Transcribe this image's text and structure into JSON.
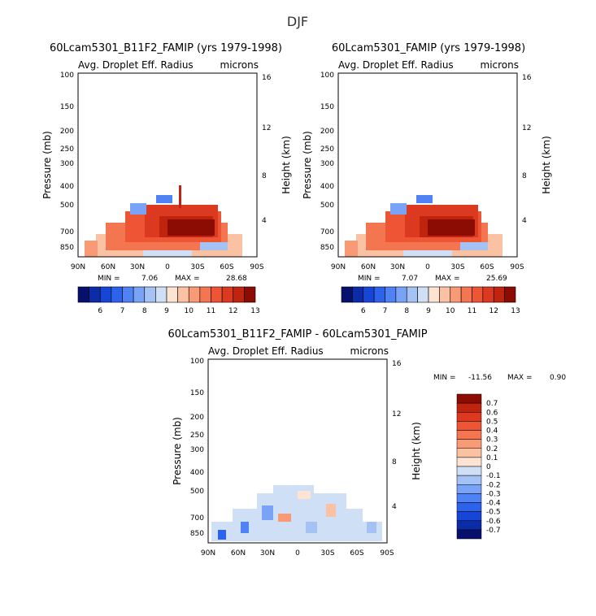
{
  "figure_title": "DJF",
  "panels": [
    {
      "id": "p1",
      "title": "60Lcam5301_B11F2_FAMIP (yrs 1979-1998)",
      "subtitle_left": "Avg. Droplet Eff. Radius",
      "subtitle_right": "microns",
      "ylabel_left": "Pressure (mb)",
      "ylabel_right": "Height (km)",
      "stats": {
        "min_label": "MIN =",
        "min": "7.06",
        "max_label": "MAX =",
        "max": "28.68"
      }
    },
    {
      "id": "p2",
      "title": "60Lcam5301_FAMIP (yrs 1979-1998)",
      "subtitle_left": "Avg. Droplet Eff. Radius",
      "subtitle_right": "microns",
      "ylabel_left": "Pressure (mb)",
      "ylabel_right": "Height (km)",
      "stats": {
        "min_label": "MIN =",
        "min": "7.07",
        "max_label": "MAX =",
        "max": "25.69"
      }
    },
    {
      "id": "p3",
      "title": "60Lcam5301_B11F2_FAMIP - 60Lcam5301_FAMIP",
      "subtitle_left": "Avg. Droplet Eff. Radius",
      "subtitle_right": "microns",
      "ylabel_left": "Pressure (mb)",
      "ylabel_right": "Height (km)",
      "stats": {
        "min_label": "MIN =",
        "min": "-11.56",
        "max_label": "MAX =",
        "max": "0.90"
      }
    }
  ],
  "chart_data": [
    {
      "type": "heatmap",
      "title": "60Lcam5301_B11F2_FAMIP (yrs 1979-1998)",
      "variable": "Avg. Droplet Eff. Radius",
      "units": "microns",
      "xlabel": "",
      "ylabel": "Pressure (mb)",
      "ylabel_right": "Height (km)",
      "x_ticks": [
        "90N",
        "60N",
        "30N",
        "0",
        "30S",
        "60S",
        "90S"
      ],
      "y_ticks": [
        "100",
        "150",
        "200",
        "250",
        "300",
        "400",
        "500",
        "700",
        "850"
      ],
      "y_right_ticks": [
        "16",
        "12",
        "8",
        "4"
      ],
      "ylim": [
        1000,
        100
      ],
      "y_scale": "log",
      "min": 7.06,
      "max": 28.68,
      "colorbar_levels": [
        "6",
        "7",
        "8",
        "9",
        "10",
        "11",
        "12",
        "13"
      ],
      "colorbar_orientation": "horizontal"
    },
    {
      "type": "heatmap",
      "title": "60Lcam5301_FAMIP (yrs 1979-1998)",
      "variable": "Avg. Droplet Eff. Radius",
      "units": "microns",
      "xlabel": "",
      "ylabel": "Pressure (mb)",
      "ylabel_right": "Height (km)",
      "x_ticks": [
        "90N",
        "60N",
        "30N",
        "0",
        "30S",
        "60S",
        "90S"
      ],
      "y_ticks": [
        "100",
        "150",
        "200",
        "250",
        "300",
        "400",
        "500",
        "700",
        "850"
      ],
      "y_right_ticks": [
        "16",
        "12",
        "8",
        "4"
      ],
      "ylim": [
        1000,
        100
      ],
      "y_scale": "log",
      "min": 7.07,
      "max": 25.69,
      "colorbar_levels": [
        "6",
        "7",
        "8",
        "9",
        "10",
        "11",
        "12",
        "13"
      ],
      "colorbar_orientation": "horizontal"
    },
    {
      "type": "heatmap",
      "title": "60Lcam5301_B11F2_FAMIP - 60Lcam5301_FAMIP",
      "variable": "Avg. Droplet Eff. Radius",
      "units": "microns",
      "xlabel": "",
      "ylabel": "Pressure (mb)",
      "ylabel_right": "Height (km)",
      "x_ticks": [
        "90N",
        "60N",
        "30N",
        "0",
        "30S",
        "60S",
        "90S"
      ],
      "y_ticks": [
        "100",
        "150",
        "200",
        "250",
        "300",
        "400",
        "500",
        "700",
        "850"
      ],
      "y_right_ticks": [
        "16",
        "12",
        "8",
        "4"
      ],
      "ylim": [
        1000,
        100
      ],
      "y_scale": "log",
      "min": -11.56,
      "max": 0.9,
      "colorbar_levels": [
        "0.7",
        "0.6",
        "0.5",
        "0.4",
        "0.3",
        "0.2",
        "0.1",
        "0",
        "-0.1",
        "-0.2",
        "-0.3",
        "-0.4",
        "-0.5",
        "-0.6",
        "-0.7"
      ],
      "colorbar_orientation": "vertical"
    }
  ],
  "palette": {
    "blues": [
      "#08106e",
      "#0c2ba6",
      "#1746d6",
      "#2d63ec",
      "#4f82f5",
      "#79a3f7",
      "#a4c2f4",
      "#cfe0f6"
    ],
    "reds": [
      "#fde3d2",
      "#fbc1a3",
      "#f89a76",
      "#f47650",
      "#ed5535",
      "#dc3a20",
      "#c0240f",
      "#8c0c04"
    ]
  }
}
